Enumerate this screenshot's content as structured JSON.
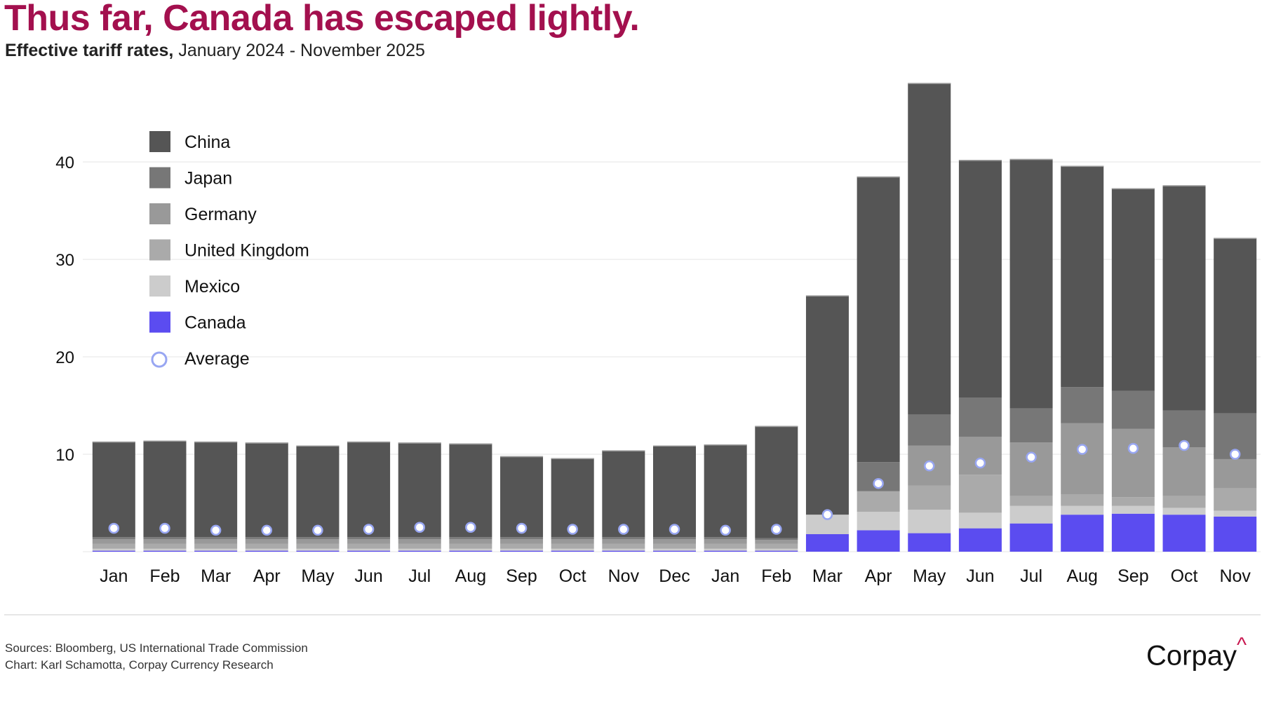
{
  "header": {
    "title": "Thus far, Canada has escaped lightly.",
    "subtitle_bold": "Effective tariff rates,",
    "subtitle_rest": " January 2024 - November 2025"
  },
  "footer": {
    "sources": "Sources: Bloomberg, US International Trade Commission",
    "credit": "Chart: Karl Schamotta, Corpay Currency Research"
  },
  "logo": {
    "text": "Corpay",
    "mark": "^"
  },
  "colors": {
    "title": "#a3104e",
    "China": "#555555",
    "Japan": "#777777",
    "Germany": "#999999",
    "United Kingdom": "#aaaaaa",
    "Mexico": "#cccccc",
    "Canada": "#5b4cf0",
    "Average_stroke": "#98a6f2",
    "Average_fill": "#ffffff",
    "grid": "#eeeeee"
  },
  "chart_data": {
    "type": "bar",
    "stacked": true,
    "title": "Thus far, Canada has escaped lightly.",
    "subtitle": "Effective tariff rates, January 2024 - November 2025",
    "xlabel": "",
    "ylabel": "",
    "ylim": [
      0,
      49
    ],
    "yticks": [
      10,
      20,
      30,
      40
    ],
    "grid": true,
    "legend_position": "top-left",
    "categories": [
      "Jan",
      "Feb",
      "Mar",
      "Apr",
      "May",
      "Jun",
      "Jul",
      "Aug",
      "Sep",
      "Oct",
      "Nov",
      "Dec",
      "Jan",
      "Feb",
      "Mar",
      "Apr",
      "May",
      "Jun",
      "Jul",
      "Aug",
      "Sep",
      "Oct",
      "Nov"
    ],
    "series": [
      {
        "name": "Canada",
        "values": [
          0.1,
          0.1,
          0.1,
          0.1,
          0.1,
          0.1,
          0.1,
          0.1,
          0.1,
          0.1,
          0.1,
          0.1,
          0.1,
          0.1,
          1.8,
          2.2,
          1.9,
          2.4,
          2.9,
          3.8,
          3.9,
          3.8,
          3.6
        ]
      },
      {
        "name": "Mexico",
        "values": [
          0.2,
          0.2,
          0.2,
          0.2,
          0.2,
          0.2,
          0.2,
          0.2,
          0.2,
          0.2,
          0.2,
          0.2,
          0.2,
          0.2,
          2.0,
          1.9,
          2.4,
          1.6,
          1.8,
          0.9,
          0.8,
          0.7,
          0.6
        ]
      },
      {
        "name": "United Kingdom",
        "values": [
          0.5,
          0.5,
          0.5,
          0.5,
          0.5,
          0.5,
          0.5,
          0.5,
          0.5,
          0.5,
          0.5,
          0.5,
          0.5,
          0.5,
          0.0,
          2.1,
          2.5,
          3.9,
          1.0,
          1.2,
          0.9,
          1.2,
          2.3
        ]
      },
      {
        "name": "Germany",
        "values": [
          0.5,
          0.5,
          0.5,
          0.5,
          0.5,
          0.5,
          0.5,
          0.5,
          0.5,
          0.5,
          0.5,
          0.5,
          0.5,
          0.4,
          0.0,
          0.0,
          4.1,
          3.9,
          5.5,
          7.3,
          7.0,
          5.0,
          3.0
        ]
      },
      {
        "name": "Japan",
        "values": [
          0.2,
          0.2,
          0.2,
          0.2,
          0.2,
          0.2,
          0.2,
          0.2,
          0.2,
          0.2,
          0.2,
          0.2,
          0.2,
          0.2,
          0.0,
          3.0,
          3.2,
          4.0,
          3.5,
          3.7,
          3.9,
          3.8,
          4.7
        ]
      },
      {
        "name": "China",
        "values": [
          9.8,
          9.9,
          9.8,
          9.7,
          9.4,
          9.8,
          9.7,
          9.6,
          8.3,
          8.1,
          8.9,
          9.4,
          9.5,
          11.5,
          22.5,
          29.3,
          34.0,
          24.4,
          25.6,
          22.7,
          20.8,
          23.1,
          18.0
        ]
      }
    ],
    "totals": [
      11.3,
      11.4,
      11.3,
      11.2,
      10.9,
      11.3,
      11.2,
      11.1,
      9.8,
      9.6,
      10.4,
      10.9,
      11.0,
      12.9,
      26.3,
      38.5,
      48.1,
      40.2,
      40.3,
      39.6,
      37.3,
      37.6,
      32.2
    ],
    "average": {
      "name": "Average",
      "values": [
        2.4,
        2.4,
        2.2,
        2.2,
        2.2,
        2.3,
        2.5,
        2.5,
        2.4,
        2.3,
        2.3,
        2.3,
        2.2,
        2.3,
        3.8,
        7.0,
        8.8,
        9.1,
        9.7,
        10.5,
        10.6,
        10.9,
        10.0
      ]
    },
    "legend": [
      "China",
      "Japan",
      "Germany",
      "United Kingdom",
      "Mexico",
      "Canada",
      "Average"
    ]
  }
}
